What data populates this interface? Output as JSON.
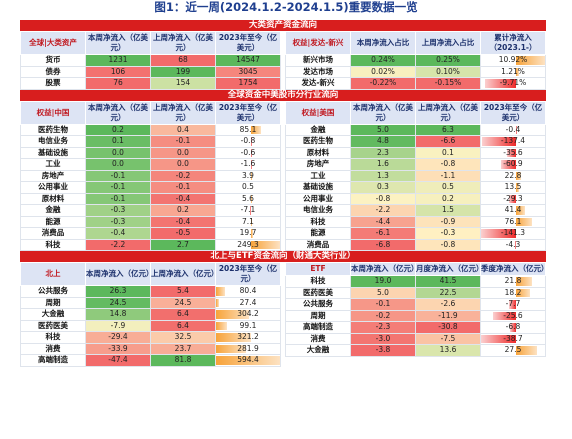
{
  "title": "图1：近一周(2024.1.2-2024.1.5)重要数据一览",
  "sections": {
    "s1": "大类资产资金流向",
    "s2": "全球资金中美股市分行业流向",
    "s3": "北上与ETF资金流向（财通大类行业）"
  },
  "t1": {
    "headers": [
      "全球|大类资产",
      "本周净流入（亿美元）",
      "上周净流入（亿美元）",
      "2023年至今（亿美元）"
    ],
    "rows": [
      {
        "label": "货币",
        "c1": "1231",
        "c2": "68",
        "c3": "14547"
      },
      {
        "label": "债券",
        "c1": "106",
        "c2": "199",
        "c3": "3045"
      },
      {
        "label": "股票",
        "c1": "76",
        "c2": "154",
        "c3": "1754"
      }
    ]
  },
  "t2": {
    "headers": [
      "权益|发达-新兴",
      "本周净流入占比",
      "上周净流入占比",
      "累计净流入（2023.1-）"
    ],
    "rows": [
      {
        "label": "新兴市场",
        "c1": "0.24%",
        "c2": "0.25%",
        "c3": "10.92%",
        "c3v": 10.92
      },
      {
        "label": "发达市场",
        "c1": "0.02%",
        "c2": "0.10%",
        "c3": "1.21%",
        "c3v": 1.21
      },
      {
        "label": "发达-新兴",
        "c1": "-0.22%",
        "c2": "-0.15%",
        "c3": "-9.71%",
        "c3v": -9.71
      }
    ]
  },
  "t3": {
    "headers": [
      "权益|中国",
      "本周净流入（亿美元）",
      "上周净流入（亿美元）",
      "2023年至今（亿美元）"
    ],
    "rows": [
      {
        "label": "医药生物",
        "c1": "0.2",
        "c2": "0.4",
        "c3": "85.1",
        "v3": 85.1
      },
      {
        "label": "电信业务",
        "c1": "0.1",
        "c2": "-0.1",
        "c3": "-0.8",
        "v3": -0.8
      },
      {
        "label": "基础设施",
        "c1": "0.0",
        "c2": "0.0",
        "c3": "-0.6",
        "v3": -0.6
      },
      {
        "label": "工业",
        "c1": "0.0",
        "c2": "0.0",
        "c3": "-1.6",
        "v3": -1.6
      },
      {
        "label": "房地产",
        "c1": "-0.1",
        "c2": "-0.2",
        "c3": "3.9",
        "v3": 3.9
      },
      {
        "label": "公用事业",
        "c1": "-0.1",
        "c2": "-0.1",
        "c3": "0.5",
        "v3": 0.5
      },
      {
        "label": "原材料",
        "c1": "-0.1",
        "c2": "-0.4",
        "c3": "5.6",
        "v3": 5.6
      },
      {
        "label": "金融",
        "c1": "-0.3",
        "c2": "0.2",
        "c3": "-7.1",
        "v3": -7.1
      },
      {
        "label": "能源",
        "c1": "-0.3",
        "c2": "-0.4",
        "c3": "7.1",
        "v3": 7.1
      },
      {
        "label": "消费品",
        "c1": "-0.4",
        "c2": "-0.5",
        "c3": "19.7",
        "v3": 19.7
      },
      {
        "label": "科技",
        "c1": "-2.2",
        "c2": "2.7",
        "c3": "249.3",
        "v3": 249.3
      }
    ]
  },
  "t4": {
    "headers": [
      "权益|美国",
      "本周净流入（亿美元）",
      "上周净流入（亿美元）",
      "2023年至今（亿美元）"
    ],
    "rows": [
      {
        "label": "金融",
        "c1": "5.0",
        "c2": "6.3",
        "c3": "-0.4",
        "v3": -0.4
      },
      {
        "label": "医药生物",
        "c1": "4.8",
        "c2": "-6.6",
        "c3": "-137.4",
        "v3": -137.4
      },
      {
        "label": "原材料",
        "c1": "2.3",
        "c2": "0.1",
        "c3": "-35.6",
        "v3": -35.6
      },
      {
        "label": "房地产",
        "c1": "1.6",
        "c2": "-0.8",
        "c3": "-60.9",
        "v3": -60.9
      },
      {
        "label": "工业",
        "c1": "1.3",
        "c2": "-1.1",
        "c3": "22.8",
        "v3": 22.8
      },
      {
        "label": "基础设施",
        "c1": "0.3",
        "c2": "0.5",
        "c3": "13.5",
        "v3": 13.5
      },
      {
        "label": "公用事业",
        "c1": "-0.8",
        "c2": "0.2",
        "c3": "-29.3",
        "v3": -29.3
      },
      {
        "label": "电信业务",
        "c1": "-2.2",
        "c2": "1.5",
        "c3": "41.4",
        "v3": 41.4
      },
      {
        "label": "科技",
        "c1": "-4.4",
        "c2": "-0.9",
        "c3": "76.1",
        "v3": 76.1
      },
      {
        "label": "能源",
        "c1": "-6.1",
        "c2": "-0.3",
        "c3": "-141.3",
        "v3": -141.3
      },
      {
        "label": "消费品",
        "c1": "-6.8",
        "c2": "-0.8",
        "c3": "-4.3",
        "v3": -4.3
      }
    ]
  },
  "t5": {
    "headers": [
      "北上",
      "本周净流入（亿元）",
      "上周净流入（亿元）",
      "2023年至今（亿元）"
    ],
    "rows": [
      {
        "label": "公共服务",
        "c1": "26.3",
        "c2": "5.4",
        "c3": "80.4",
        "v3": 80.4
      },
      {
        "label": "周期",
        "c1": "24.5",
        "c2": "24.5",
        "c3": "27.4",
        "v3": 27.4
      },
      {
        "label": "大金融",
        "c1": "14.8",
        "c2": "6.4",
        "c3": "304.2",
        "v3": 304.2
      },
      {
        "label": "医药医美",
        "c1": "-7.9",
        "c2": "6.4",
        "c3": "99.1",
        "v3": 99.1
      },
      {
        "label": "科技",
        "c1": "-29.4",
        "c2": "32.5",
        "c3": "321.2",
        "v3": 321.2
      },
      {
        "label": "消费",
        "c1": "-33.9",
        "c2": "23.7",
        "c3": "281.9",
        "v3": 281.9
      },
      {
        "label": "高端制造",
        "c1": "-47.4",
        "c2": "81.8",
        "c3": "594.4",
        "v3": 594.4
      }
    ]
  },
  "t6": {
    "headers": [
      "ETF",
      "本周净流入（亿元）",
      "月度净流入（亿元）",
      "季度净流入（亿元）"
    ],
    "rows": [
      {
        "label": "科技",
        "c1": "19.0",
        "c2": "41.5",
        "c3": "21.8",
        "v3": 21.8
      },
      {
        "label": "医药医美",
        "c1": "5.0",
        "c2": "22.5",
        "c3": "18.2",
        "v3": 18.2
      },
      {
        "label": "公共服务",
        "c1": "-0.1",
        "c2": "-2.6",
        "c3": "-7.7",
        "v3": -7.7
      },
      {
        "label": "周期",
        "c1": "-0.2",
        "c2": "-11.9",
        "c3": "-25.6",
        "v3": -25.6
      },
      {
        "label": "高端制造",
        "c1": "-2.3",
        "c2": "-30.8",
        "c3": "-6.8",
        "v3": -6.8
      },
      {
        "label": "消费",
        "c1": "-3.0",
        "c2": "-7.5",
        "c3": "-38.7",
        "v3": -38.7
      },
      {
        "label": "大金融",
        "c1": "-3.8",
        "c2": "13.6",
        "c3": "27.5",
        "v3": 27.5
      }
    ]
  },
  "colors": {
    "section_bar": "#d81e1e",
    "header_bg": "#dde4f4",
    "header_text": "#1b2f6b",
    "header_highlight": "#c0161d",
    "pos_high": "#5cb85c",
    "mid": "#fff3c4",
    "neg_high": "#f26b6b",
    "bar_pos": "#f7a33a",
    "bar_neg": "#ee2a2a"
  }
}
